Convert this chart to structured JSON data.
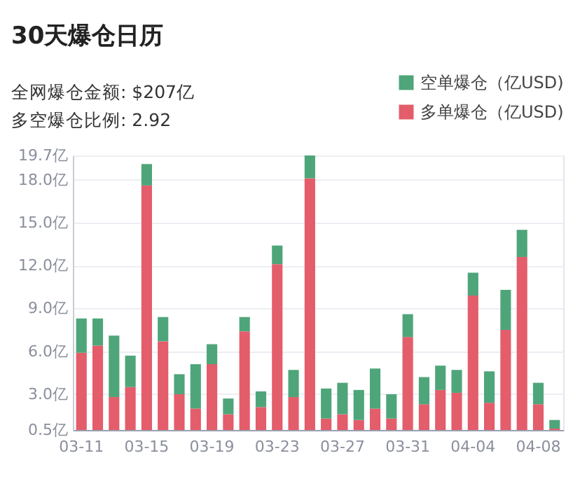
{
  "chart_data": {
    "type": "bar",
    "title": "30天爆仓日历",
    "annotations": [
      "全网爆仓金额:  $207亿",
      "多空爆仓比例:  2.92"
    ],
    "categories": [
      "03-11",
      null,
      null,
      null,
      "03-15",
      null,
      null,
      null,
      "03-19",
      null,
      null,
      null,
      "03-23",
      null,
      null,
      null,
      "03-27",
      null,
      null,
      null,
      "03-31",
      null,
      null,
      null,
      "04-04",
      null,
      null,
      null,
      "04-08",
      null
    ],
    "stacked": true,
    "series": [
      {
        "name": "多单爆仓（亿USD)",
        "color": "#e35d6a",
        "values": [
          5.9,
          6.4,
          2.8,
          3.5,
          17.6,
          6.7,
          3.0,
          2.0,
          5.1,
          1.6,
          7.4,
          2.1,
          12.1,
          2.8,
          18.1,
          1.3,
          1.6,
          1.2,
          2.0,
          1.3,
          7.0,
          2.3,
          3.3,
          3.1,
          9.9,
          2.4,
          7.5,
          12.6,
          2.3,
          0.6
        ]
      },
      {
        "name": "空单爆仓（亿USD)",
        "color": "#4fa57a",
        "values": [
          2.4,
          1.9,
          4.3,
          2.2,
          1.5,
          1.7,
          1.4,
          3.1,
          1.4,
          1.1,
          1.0,
          1.1,
          1.3,
          1.9,
          1.6,
          2.1,
          2.2,
          2.1,
          2.8,
          1.7,
          1.6,
          1.9,
          1.7,
          1.6,
          1.6,
          2.2,
          2.8,
          1.9,
          1.5,
          0.6
        ]
      }
    ],
    "ylim": [
      0.5,
      19.7
    ],
    "yticks": [
      {
        "value": 0.5,
        "label": "0.5亿"
      },
      {
        "value": 3,
        "label": "3.0亿"
      },
      {
        "value": 6,
        "label": "6.0亿"
      },
      {
        "value": 9,
        "label": "9.0亿"
      },
      {
        "value": 12,
        "label": "12.0亿"
      },
      {
        "value": 15,
        "label": "15.0亿"
      },
      {
        "value": 18,
        "label": "18.0亿"
      },
      {
        "value": 19.7,
        "label": "19.7亿"
      }
    ],
    "grid": "y",
    "legend": "top right"
  }
}
